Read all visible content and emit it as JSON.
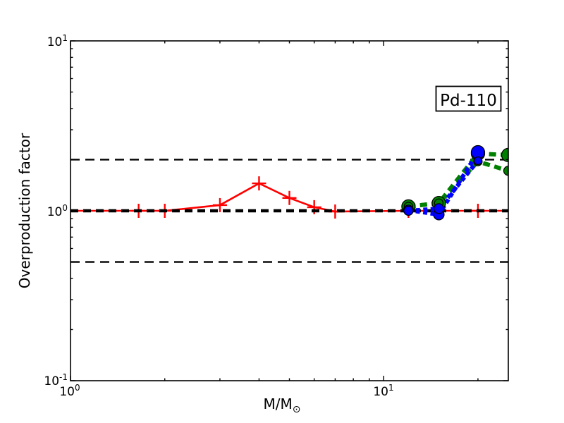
{
  "figure": {
    "background": "#ffffff"
  },
  "annotation": {
    "label": "Pd-110"
  },
  "axes": {
    "ylabel": "Overproduction factor",
    "xlabel_base": "M/M",
    "xlabel_subscript": "⊙",
    "x_tick_labels": [
      {
        "base": "10",
        "exp": "0"
      },
      {
        "base": "10",
        "exp": "1"
      }
    ],
    "y_tick_labels": [
      {
        "base": "10",
        "exp": "1"
      },
      {
        "base": "10",
        "exp": "0"
      },
      {
        "base": "10",
        "exp": "-1"
      }
    ]
  },
  "chart_data": {
    "type": "line",
    "title": "",
    "xlabel": "M/M⊙",
    "ylabel": "Overproduction factor",
    "xscale": "log",
    "yscale": "log",
    "xlim": [
      1,
      25
    ],
    "ylim": [
      0.1,
      10
    ],
    "grid": false,
    "legend": "none",
    "annotation": "Pd-110",
    "x_major_ticks": [
      1,
      10
    ],
    "x_minor_ticks": [
      2,
      3,
      4,
      5,
      6,
      7,
      8,
      9,
      20
    ],
    "y_major_ticks": [
      0.1,
      1,
      10
    ],
    "y_minor_ticks": [
      0.2,
      0.3,
      0.4,
      0.5,
      0.6,
      0.7,
      0.8,
      0.9,
      2,
      3,
      4,
      5,
      6,
      7,
      8,
      9
    ],
    "reference_lines": [
      {
        "y": 2.0,
        "style": "dashed",
        "color": "#000000",
        "weight": "thin"
      },
      {
        "y": 0.5,
        "style": "dashed",
        "color": "#000000",
        "weight": "thin"
      },
      {
        "y": 1.0,
        "style": "dashed",
        "color": "#000000",
        "weight": "thick"
      }
    ],
    "series": [
      {
        "name": "agb-models-red",
        "color": "#ff0000",
        "line": "solid",
        "marker": "plus",
        "x": [
          1.65,
          2,
          3,
          4,
          5,
          6,
          7,
          12,
          20
        ],
        "y": [
          1.0,
          1.0,
          1.08,
          1.45,
          1.19,
          1.05,
          0.99,
          1.0,
          1.0
        ],
        "line_x": [
          1.0,
          1.65,
          2,
          3,
          4,
          5,
          6,
          7,
          12,
          20,
          25
        ],
        "line_y": [
          1.0,
          1.0,
          1.0,
          1.08,
          1.45,
          1.19,
          1.05,
          0.99,
          1.0,
          1.0,
          1.0
        ]
      },
      {
        "name": "massive-star-green-upper",
        "color": "#008000",
        "line": "dashed",
        "marker": "circle",
        "x": [
          12,
          15,
          20,
          25
        ],
        "y": [
          1.06,
          1.11,
          2.17,
          2.13
        ]
      },
      {
        "name": "massive-star-green-lower",
        "color": "#008000",
        "line": "dashed",
        "marker": "circle",
        "x": [
          12,
          15,
          20,
          25
        ],
        "y": [
          1.06,
          1.11,
          1.95,
          1.72
        ]
      },
      {
        "name": "massive-star-blue-upper",
        "color": "#0000ff",
        "line": "dotted",
        "marker": "circle",
        "x": [
          12,
          15,
          20
        ],
        "y": [
          1.01,
          0.95,
          2.21
        ]
      },
      {
        "name": "massive-star-blue-lower",
        "color": "#0000ff",
        "line": "dotted",
        "marker": "circle",
        "x": [
          12,
          15,
          20
        ],
        "y": [
          1.0,
          1.03,
          1.97
        ]
      }
    ]
  }
}
